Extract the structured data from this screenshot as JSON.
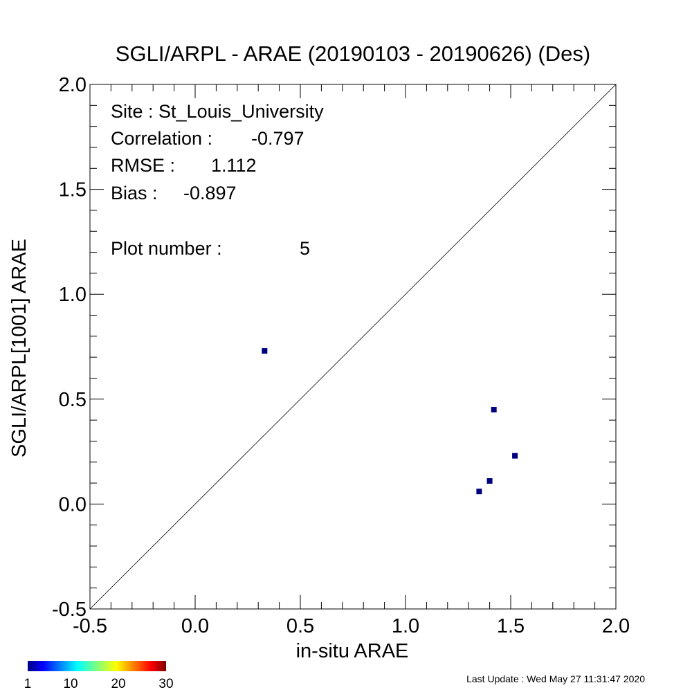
{
  "chart_data": {
    "type": "scatter",
    "title": "SGLI/ARPL - ARAE (20190103 - 20190626) (Des)",
    "xlabel": "in-situ ARAE",
    "ylabel": "SGLI/ARPL[1001]    ARAE",
    "xlim": [
      -0.5,
      2.0
    ],
    "ylim": [
      -0.5,
      2.0
    ],
    "x_ticks": [
      "-0.5",
      "0.0",
      "0.5",
      "1.0",
      "1.5",
      "2.0"
    ],
    "y_ticks": [
      "-0.5",
      "0.0",
      "0.5",
      "1.0",
      "1.5",
      "2.0"
    ],
    "grid": false,
    "reference_line": "y = x",
    "points": [
      {
        "x": 0.33,
        "y": 0.73
      },
      {
        "x": 1.42,
        "y": 0.45
      },
      {
        "x": 1.52,
        "y": 0.23
      },
      {
        "x": 1.4,
        "y": 0.11
      },
      {
        "x": 1.35,
        "y": 0.06
      }
    ],
    "point_color": "#00007f",
    "stats": [
      {
        "label": "Site : St_Louis_University"
      },
      {
        "label": "Correlation :",
        "value": "-0.797"
      },
      {
        "label": "RMSE :",
        "value": "1.112"
      },
      {
        "label": "Bias :",
        "value": "-0.897"
      },
      {
        "label": "Plot number :",
        "value": "5"
      }
    ],
    "colorbar": {
      "colormap": "jet",
      "ticks": [
        "1",
        "10",
        "20",
        "30"
      ]
    },
    "footer": "Last Update : Wed May 27 11:31:47 2020"
  }
}
